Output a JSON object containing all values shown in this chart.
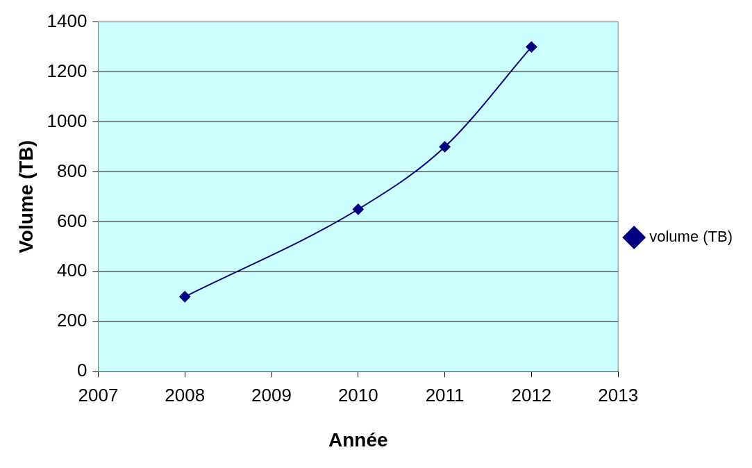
{
  "chart_data": {
    "type": "line",
    "xlabel": "Année",
    "ylabel": "Volume (TB)",
    "x": [
      2008,
      2010,
      2011,
      2012
    ],
    "series": [
      {
        "name": "volume (TB)",
        "color": "#000080",
        "values": [
          300,
          650,
          900,
          1300
        ]
      }
    ],
    "xlim": [
      2007,
      2013
    ],
    "xticks": [
      2007,
      2008,
      2009,
      2010,
      2011,
      2012,
      2013
    ],
    "ylim": [
      0,
      1400
    ],
    "yticks": [
      0,
      200,
      400,
      600,
      800,
      1000,
      1200,
      1400
    ],
    "grid": "y",
    "legend": "right",
    "marker": "diamond",
    "line_style": "solid"
  }
}
